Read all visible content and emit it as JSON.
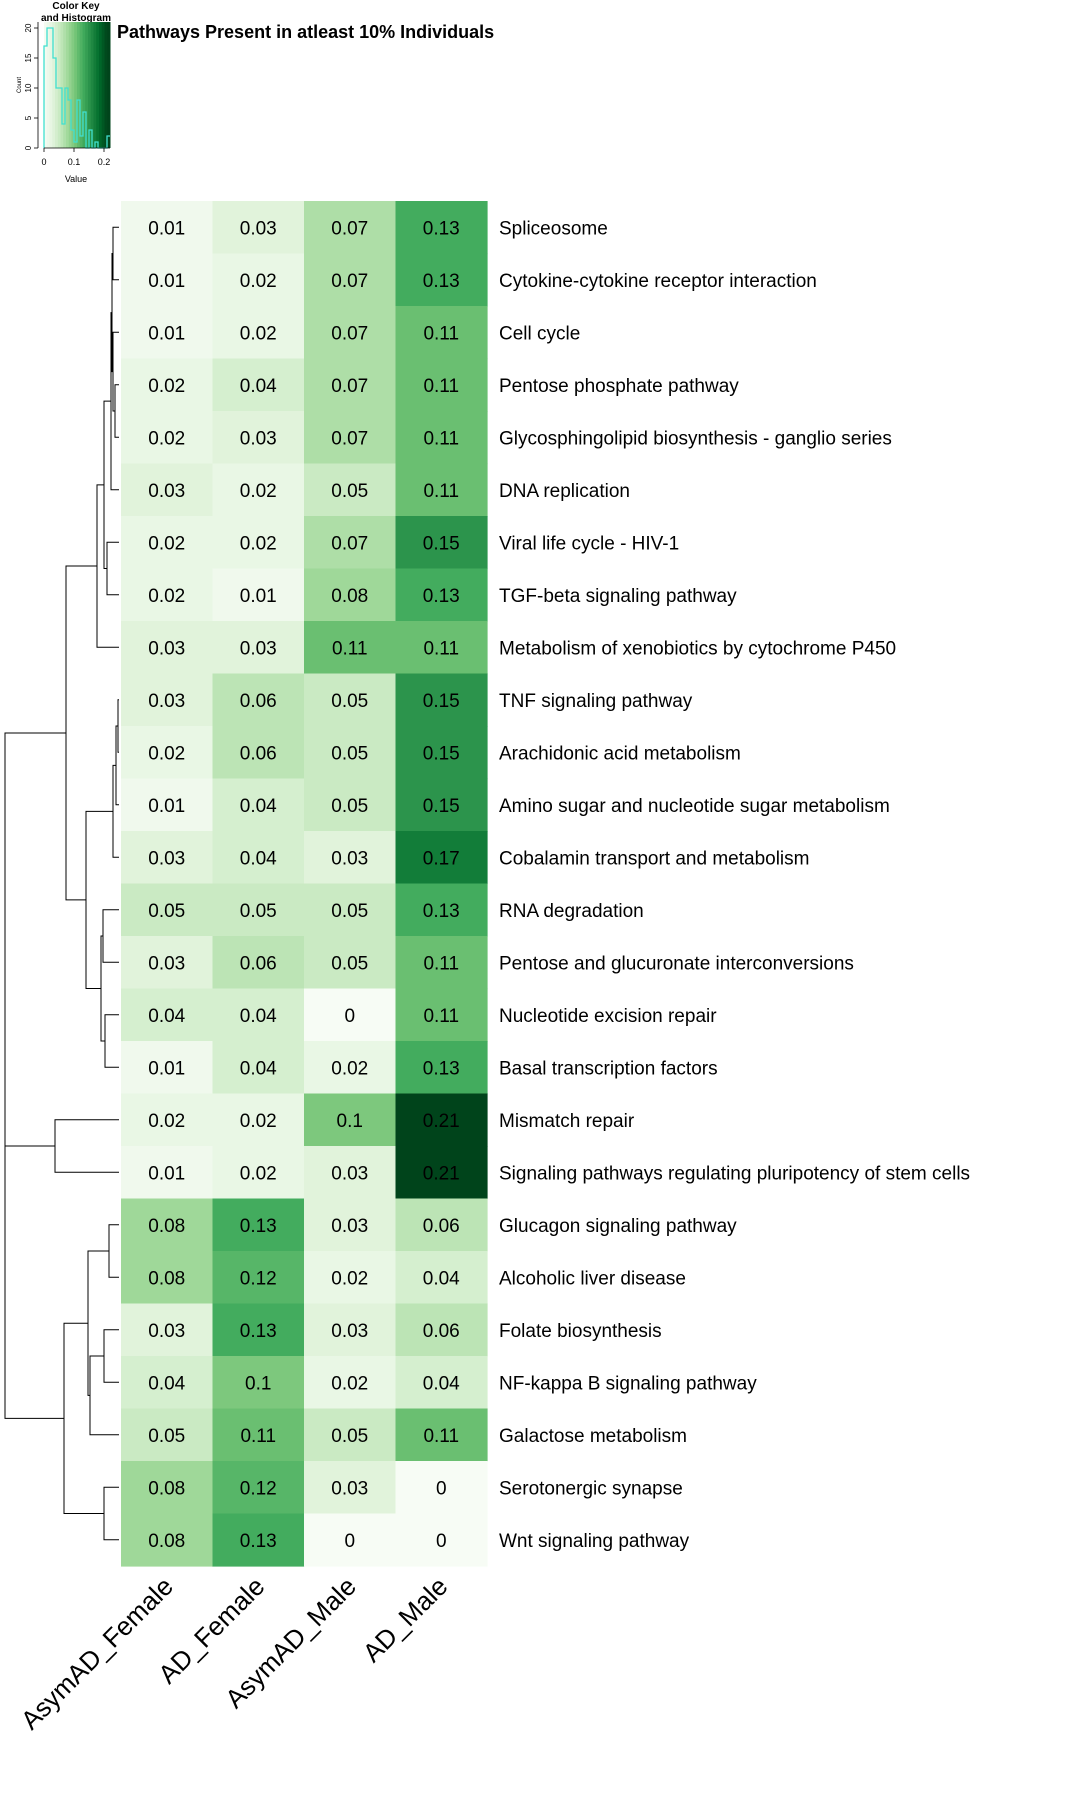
{
  "chart_data": {
    "type": "heatmap",
    "title": "Pathways Present in atleast 10% Individuals",
    "columns": [
      "AsymAD_Female",
      "AD_Female",
      "AsymAD_Male",
      "AD_Male"
    ],
    "rows": [
      {
        "label": "Spliceosome",
        "values": [
          "0.01",
          "0.03",
          "0.07",
          "0.13"
        ]
      },
      {
        "label": "Cytokine-cytokine receptor interaction",
        "values": [
          "0.01",
          "0.02",
          "0.07",
          "0.13"
        ]
      },
      {
        "label": "Cell cycle",
        "values": [
          "0.01",
          "0.02",
          "0.07",
          "0.11"
        ]
      },
      {
        "label": "Pentose phosphate pathway",
        "values": [
          "0.02",
          "0.04",
          "0.07",
          "0.11"
        ]
      },
      {
        "label": "Glycosphingolipid biosynthesis - ganglio series",
        "values": [
          "0.02",
          "0.03",
          "0.07",
          "0.11"
        ]
      },
      {
        "label": "DNA replication",
        "values": [
          "0.03",
          "0.02",
          "0.05",
          "0.11"
        ]
      },
      {
        "label": "Viral life cycle - HIV-1",
        "values": [
          "0.02",
          "0.02",
          "0.07",
          "0.15"
        ]
      },
      {
        "label": "TGF-beta signaling pathway",
        "values": [
          "0.02",
          "0.01",
          "0.08",
          "0.13"
        ]
      },
      {
        "label": "Metabolism of xenobiotics by cytochrome P450",
        "values": [
          "0.03",
          "0.03",
          "0.11",
          "0.11"
        ]
      },
      {
        "label": "TNF signaling pathway",
        "values": [
          "0.03",
          "0.06",
          "0.05",
          "0.15"
        ]
      },
      {
        "label": "Arachidonic acid metabolism",
        "values": [
          "0.02",
          "0.06",
          "0.05",
          "0.15"
        ]
      },
      {
        "label": "Amino sugar and nucleotide sugar metabolism",
        "values": [
          "0.01",
          "0.04",
          "0.05",
          "0.15"
        ]
      },
      {
        "label": "Cobalamin transport and metabolism",
        "values": [
          "0.03",
          "0.04",
          "0.03",
          "0.17"
        ]
      },
      {
        "label": "RNA degradation",
        "values": [
          "0.05",
          "0.05",
          "0.05",
          "0.13"
        ]
      },
      {
        "label": "Pentose and glucuronate interconversions",
        "values": [
          "0.03",
          "0.06",
          "0.05",
          "0.11"
        ]
      },
      {
        "label": "Nucleotide excision repair",
        "values": [
          "0.04",
          "0.04",
          "0",
          "0.11"
        ]
      },
      {
        "label": "Basal transcription factors",
        "values": [
          "0.01",
          "0.04",
          "0.02",
          "0.13"
        ]
      },
      {
        "label": "Mismatch repair",
        "values": [
          "0.02",
          "0.02",
          "0.1",
          "0.21"
        ]
      },
      {
        "label": "Signaling pathways regulating pluripotency of stem cells",
        "values": [
          "0.01",
          "0.02",
          "0.03",
          "0.21"
        ]
      },
      {
        "label": "Glucagon signaling pathway",
        "values": [
          "0.08",
          "0.13",
          "0.03",
          "0.06"
        ]
      },
      {
        "label": "Alcoholic liver disease",
        "values": [
          "0.08",
          "0.12",
          "0.02",
          "0.04"
        ]
      },
      {
        "label": "Folate biosynthesis",
        "values": [
          "0.03",
          "0.13",
          "0.03",
          "0.06"
        ]
      },
      {
        "label": "NF-kappa B signaling pathway",
        "values": [
          "0.04",
          "0.1",
          "0.02",
          "0.04"
        ]
      },
      {
        "label": "Galactose metabolism",
        "values": [
          "0.05",
          "0.11",
          "0.05",
          "0.11"
        ]
      },
      {
        "label": "Serotonergic synapse",
        "values": [
          "0.08",
          "0.12",
          "0.03",
          "0"
        ]
      },
      {
        "label": "Wnt signaling pathway",
        "values": [
          "0.08",
          "0.13",
          "0",
          "0"
        ]
      }
    ],
    "color_scale": {
      "range": [
        0,
        0.21
      ],
      "colors": [
        "#f7fcf5",
        "#e5f5e0",
        "#c7e9c0",
        "#a1d99b",
        "#74c476",
        "#41ab5d",
        "#238b45",
        "#006d2c",
        "#00441b"
      ]
    },
    "color_key": {
      "title_line1": "Color Key",
      "title_line2": "and Histogram",
      "xlabel": "Value",
      "ylabel": "Count",
      "x_ticks": [
        "0",
        "0.1",
        "0.2"
      ],
      "y_ticks": [
        "0",
        "5",
        "10",
        "15",
        "20"
      ],
      "x_range": [
        0,
        0.22
      ],
      "y_range": [
        0,
        21
      ],
      "histogram_line_color": "#40e0d0",
      "histogram": [
        {
          "x": 0.0,
          "count": 17
        },
        {
          "x": 0.01,
          "count": 20
        },
        {
          "x": 0.02,
          "count": 20
        },
        {
          "x": 0.03,
          "count": 15
        },
        {
          "x": 0.04,
          "count": 10
        },
        {
          "x": 0.05,
          "count": 10
        },
        {
          "x": 0.06,
          "count": 4
        },
        {
          "x": 0.07,
          "count": 10
        },
        {
          "x": 0.08,
          "count": 8
        },
        {
          "x": 0.09,
          "count": 3
        },
        {
          "x": 0.1,
          "count": 1
        },
        {
          "x": 0.11,
          "count": 8
        },
        {
          "x": 0.12,
          "count": 2
        },
        {
          "x": 0.13,
          "count": 6
        },
        {
          "x": 0.14,
          "count": 0
        },
        {
          "x": 0.15,
          "count": 3
        },
        {
          "x": 0.16,
          "count": 0
        },
        {
          "x": 0.17,
          "count": 1
        },
        {
          "x": 0.18,
          "count": 0
        },
        {
          "x": 0.19,
          "count": 0
        },
        {
          "x": 0.2,
          "count": 0
        },
        {
          "x": 0.21,
          "count": 2
        }
      ]
    },
    "dendrogram_color": "#000000"
  }
}
